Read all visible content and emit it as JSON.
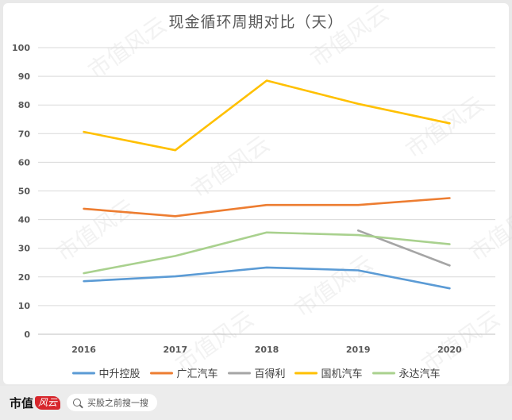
{
  "chart_data": {
    "type": "line",
    "title": "现金循环周期对比（天）",
    "xlabel": "",
    "ylabel": "",
    "categories": [
      "2016",
      "2017",
      "2018",
      "2019",
      "2020"
    ],
    "ylim": [
      0,
      100
    ],
    "yticks": [
      0,
      10,
      20,
      30,
      40,
      50,
      60,
      70,
      80,
      90,
      100
    ],
    "grid": true,
    "legend": "bottom",
    "series": [
      {
        "name": "中升控股",
        "color": "#5b9bd5",
        "values": [
          18.5,
          20.2,
          23.3,
          22.3,
          16.0
        ]
      },
      {
        "name": "广汇汽车",
        "color": "#ed7d31",
        "values": [
          43.8,
          41.2,
          45.1,
          45.1,
          47.5
        ]
      },
      {
        "name": "百得利",
        "color": "#a5a5a5",
        "values": [
          null,
          null,
          null,
          36.2,
          24.0
        ]
      },
      {
        "name": "国机汽车",
        "color": "#ffc000",
        "values": [
          70.6,
          64.2,
          88.5,
          80.4,
          73.6
        ]
      },
      {
        "name": "永达汽车",
        "color": "#a9d18e",
        "values": [
          21.3,
          27.3,
          35.5,
          34.6,
          31.4
        ]
      }
    ]
  },
  "watermark": "市值风云",
  "footer": {
    "brand": "市值",
    "brand_logo": "风云",
    "search_placeholder": "买股之前搜一搜"
  }
}
